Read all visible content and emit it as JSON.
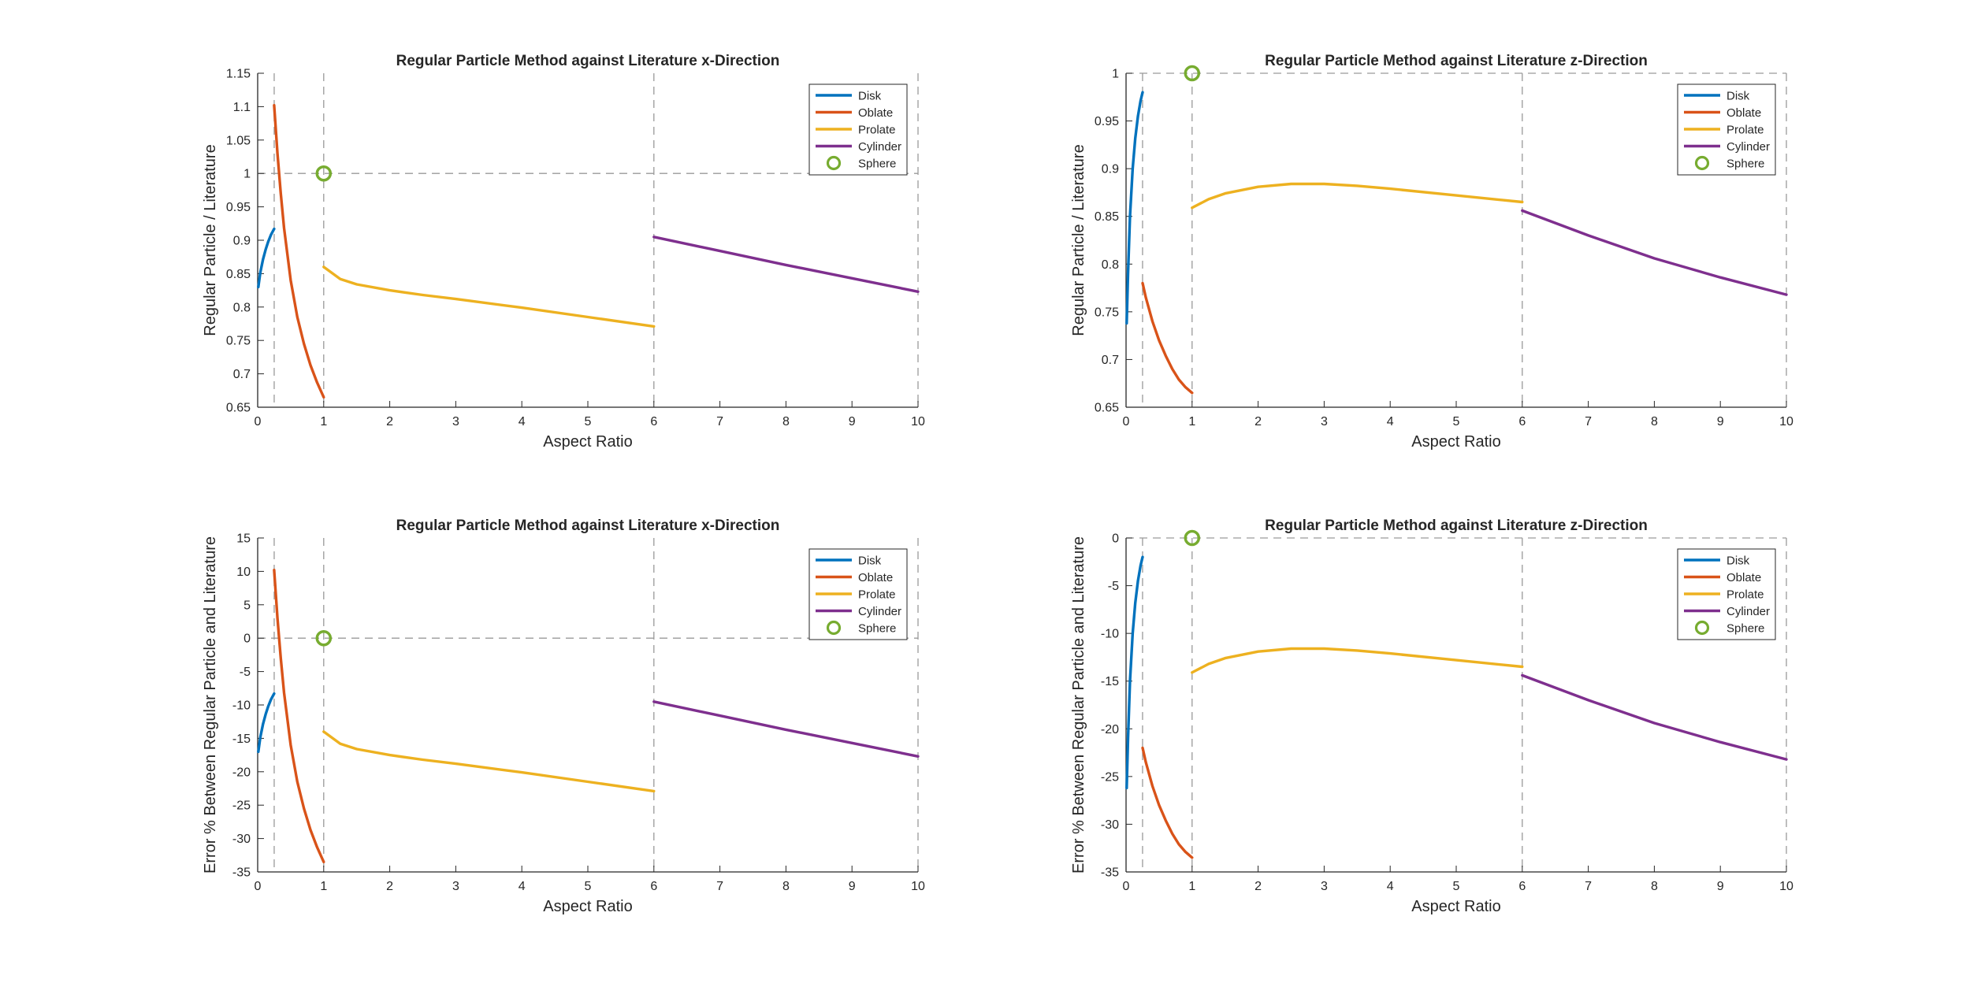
{
  "figure": {
    "colors": {
      "Disk": "#0072BD",
      "Oblate": "#D95319",
      "Prolate": "#EDB120",
      "Cylinder": "#7E2F8E",
      "Sphere": "#77AC30",
      "guide": "#9a9a9a",
      "axis": "#262626"
    }
  },
  "chart_data": [
    {
      "type": "line",
      "title": "Regular Particle Method against Literature x-Direction",
      "xlabel": "Aspect Ratio",
      "ylabel": "Regular Particle / Literature",
      "xlim": [
        0,
        10
      ],
      "ylim": [
        0.65,
        1.15
      ],
      "xticks": [
        0,
        1,
        2,
        3,
        4,
        5,
        6,
        7,
        8,
        9,
        10
      ],
      "yticks": [
        0.65,
        0.7,
        0.75,
        0.8,
        0.85,
        0.9,
        0.95,
        1,
        1.05,
        1.1,
        1.15
      ],
      "grid": false,
      "legend_location": "top-right",
      "guides": {
        "vertical": [
          0.25,
          1,
          6,
          10
        ],
        "horizontal": 1
      },
      "series": [
        {
          "name": "Disk",
          "x": [
            0.01,
            0.04,
            0.08,
            0.12,
            0.16,
            0.2,
            0.25
          ],
          "y": [
            0.83,
            0.852,
            0.871,
            0.886,
            0.898,
            0.908,
            0.917
          ]
        },
        {
          "name": "Oblate",
          "x": [
            0.25,
            0.3,
            0.35,
            0.4,
            0.5,
            0.6,
            0.7,
            0.8,
            0.9,
            1.0
          ],
          "y": [
            1.102,
            1.03,
            0.97,
            0.918,
            0.84,
            0.785,
            0.745,
            0.713,
            0.687,
            0.665
          ]
        },
        {
          "name": "Prolate",
          "x": [
            1.0,
            1.25,
            1.5,
            2,
            2.5,
            3,
            4,
            5,
            6
          ],
          "y": [
            0.86,
            0.842,
            0.834,
            0.825,
            0.818,
            0.812,
            0.799,
            0.785,
            0.771
          ]
        },
        {
          "name": "Cylinder",
          "x": [
            6,
            7,
            8,
            9,
            10
          ],
          "y": [
            0.905,
            0.884,
            0.863,
            0.843,
            0.823
          ]
        },
        {
          "name": "Sphere",
          "marker": "circle",
          "x": [
            1
          ],
          "y": [
            1
          ]
        }
      ]
    },
    {
      "type": "line",
      "title": "Regular Particle Method against Literature z-Direction",
      "xlabel": "Aspect Ratio",
      "ylabel": "Regular Particle / Literature",
      "xlim": [
        0,
        10
      ],
      "ylim": [
        0.65,
        1
      ],
      "xticks": [
        0,
        1,
        2,
        3,
        4,
        5,
        6,
        7,
        8,
        9,
        10
      ],
      "yticks": [
        0.65,
        0.7,
        0.75,
        0.8,
        0.85,
        0.9,
        0.95,
        1
      ],
      "grid": false,
      "legend_location": "top-right",
      "guides": {
        "vertical": [
          0.25,
          1,
          6,
          10
        ],
        "horizontal": 1
      },
      "series": [
        {
          "name": "Disk",
          "x": [
            0.01,
            0.03,
            0.06,
            0.1,
            0.14,
            0.18,
            0.22,
            0.25
          ],
          "y": [
            0.738,
            0.79,
            0.85,
            0.9,
            0.932,
            0.955,
            0.971,
            0.98
          ]
        },
        {
          "name": "Oblate",
          "x": [
            0.25,
            0.3,
            0.4,
            0.5,
            0.6,
            0.7,
            0.8,
            0.9,
            1.0
          ],
          "y": [
            0.78,
            0.765,
            0.74,
            0.72,
            0.704,
            0.69,
            0.679,
            0.671,
            0.665
          ]
        },
        {
          "name": "Prolate",
          "x": [
            1.0,
            1.25,
            1.5,
            2,
            2.5,
            3,
            3.5,
            4,
            5,
            6
          ],
          "y": [
            0.859,
            0.868,
            0.874,
            0.881,
            0.884,
            0.884,
            0.882,
            0.879,
            0.872,
            0.865
          ]
        },
        {
          "name": "Cylinder",
          "x": [
            6,
            7,
            8,
            9,
            10
          ],
          "y": [
            0.856,
            0.83,
            0.806,
            0.786,
            0.768
          ]
        },
        {
          "name": "Sphere",
          "marker": "circle",
          "x": [
            1
          ],
          "y": [
            1
          ]
        }
      ]
    },
    {
      "type": "line",
      "title": "Regular Particle Method against Literature x-Direction",
      "xlabel": "Aspect Ratio",
      "ylabel": "Error % Between Regular Particle and Literature",
      "xlim": [
        0,
        10
      ],
      "ylim": [
        -35,
        15
      ],
      "xticks": [
        0,
        1,
        2,
        3,
        4,
        5,
        6,
        7,
        8,
        9,
        10
      ],
      "yticks": [
        -35,
        -30,
        -25,
        -20,
        -15,
        -10,
        -5,
        0,
        5,
        10,
        15
      ],
      "grid": false,
      "legend_location": "top-right",
      "guides": {
        "vertical": [
          0.25,
          1,
          6,
          10
        ],
        "horizontal": 0
      },
      "series": [
        {
          "name": "Disk",
          "x": [
            0.01,
            0.04,
            0.08,
            0.12,
            0.16,
            0.2,
            0.25
          ],
          "y": [
            -17,
            -14.8,
            -12.9,
            -11.4,
            -10.2,
            -9.2,
            -8.3
          ]
        },
        {
          "name": "Oblate",
          "x": [
            0.25,
            0.3,
            0.35,
            0.4,
            0.5,
            0.6,
            0.7,
            0.8,
            0.9,
            1.0
          ],
          "y": [
            10.2,
            3,
            -3,
            -8.2,
            -16,
            -21.5,
            -25.5,
            -28.7,
            -31.3,
            -33.5
          ]
        },
        {
          "name": "Prolate",
          "x": [
            1.0,
            1.25,
            1.5,
            2,
            2.5,
            3,
            4,
            5,
            6
          ],
          "y": [
            -14,
            -15.8,
            -16.6,
            -17.5,
            -18.2,
            -18.8,
            -20.1,
            -21.5,
            -22.9
          ]
        },
        {
          "name": "Cylinder",
          "x": [
            6,
            7,
            8,
            9,
            10
          ],
          "y": [
            -9.5,
            -11.6,
            -13.7,
            -15.7,
            -17.7
          ]
        },
        {
          "name": "Sphere",
          "marker": "circle",
          "x": [
            1
          ],
          "y": [
            0
          ]
        }
      ]
    },
    {
      "type": "line",
      "title": "Regular Particle Method against Literature z-Direction",
      "xlabel": "Aspect Ratio",
      "ylabel": "Error % Between Regular Particle and Literature",
      "xlim": [
        0,
        10
      ],
      "ylim": [
        -35,
        0
      ],
      "xticks": [
        0,
        1,
        2,
        3,
        4,
        5,
        6,
        7,
        8,
        9,
        10
      ],
      "yticks": [
        -35,
        -30,
        -25,
        -20,
        -15,
        -10,
        -5,
        0
      ],
      "grid": false,
      "legend_location": "top-right",
      "guides": {
        "vertical": [
          0.25,
          1,
          6,
          10
        ],
        "horizontal": 0
      },
      "series": [
        {
          "name": "Disk",
          "x": [
            0.01,
            0.03,
            0.06,
            0.1,
            0.14,
            0.18,
            0.22,
            0.25
          ],
          "y": [
            -26.2,
            -21,
            -15,
            -10,
            -6.8,
            -4.5,
            -2.9,
            -2
          ]
        },
        {
          "name": "Oblate",
          "x": [
            0.25,
            0.3,
            0.4,
            0.5,
            0.6,
            0.7,
            0.8,
            0.9,
            1.0
          ],
          "y": [
            -22,
            -23.5,
            -26,
            -28,
            -29.6,
            -31,
            -32.1,
            -32.9,
            -33.5
          ]
        },
        {
          "name": "Prolate",
          "x": [
            1.0,
            1.25,
            1.5,
            2,
            2.5,
            3,
            3.5,
            4,
            5,
            6
          ],
          "y": [
            -14.1,
            -13.2,
            -12.6,
            -11.9,
            -11.6,
            -11.6,
            -11.8,
            -12.1,
            -12.8,
            -13.5
          ]
        },
        {
          "name": "Cylinder",
          "x": [
            6,
            7,
            8,
            9,
            10
          ],
          "y": [
            -14.4,
            -17,
            -19.4,
            -21.4,
            -23.2
          ]
        },
        {
          "name": "Sphere",
          "marker": "circle",
          "x": [
            1
          ],
          "y": [
            0
          ]
        }
      ]
    }
  ]
}
